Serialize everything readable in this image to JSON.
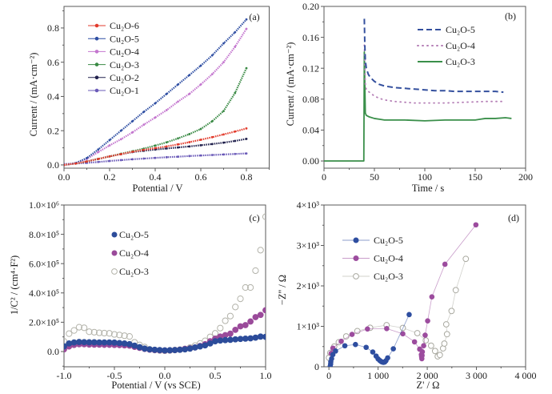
{
  "figure": {
    "panel_count": 4
  },
  "chart_data": [
    {
      "panel_label": "(a)",
      "type": "line",
      "title": "",
      "xlabel": "Potential / V",
      "ylabel": "Current / (mA·cm⁻²)",
      "xlim": [
        0,
        0.9
      ],
      "ylim": [
        -0.019,
        0.926
      ],
      "grid": false,
      "legend_position": "top-left",
      "x_minor_step": 0.1,
      "y_minor_step": 0.1,
      "xticks": [
        {
          "value": 0.0,
          "label": "0.0"
        },
        {
          "value": 0.2,
          "label": "0.2"
        },
        {
          "value": 0.4,
          "label": "0.4"
        },
        {
          "value": 0.6,
          "label": "0.6"
        },
        {
          "value": 0.8,
          "label": "0.8"
        }
      ],
      "yticks": [
        {
          "value": 0.0,
          "label": "0.0"
        },
        {
          "value": 0.2,
          "label": "0.2"
        },
        {
          "value": 0.4,
          "label": "0.4"
        },
        {
          "value": 0.6,
          "label": "0.6"
        },
        {
          "value": 0.8,
          "label": "0.8"
        }
      ],
      "x": [
        0,
        0.05,
        0.1,
        0.15,
        0.2,
        0.25,
        0.3,
        0.35,
        0.4,
        0.45,
        0.5,
        0.55,
        0.6,
        0.65,
        0.7,
        0.75,
        0.8
      ],
      "series": [
        {
          "name": "Cu₂O-6",
          "color": "#e23b2c",
          "marker": "square",
          "values": [
            0.0,
            0.008,
            0.02,
            0.035,
            0.05,
            0.063,
            0.077,
            0.088,
            0.098,
            0.108,
            0.12,
            0.133,
            0.147,
            0.162,
            0.178,
            0.195,
            0.213
          ]
        },
        {
          "name": "Cu₂O-5",
          "color": "#2f4fa3",
          "marker": "circle",
          "values": [
            0.0,
            0.01,
            0.04,
            0.09,
            0.145,
            0.2,
            0.255,
            0.31,
            0.36,
            0.415,
            0.47,
            0.525,
            0.58,
            0.64,
            0.71,
            0.775,
            0.85
          ]
        },
        {
          "name": "Cu₂O-4",
          "color": "#c477cf",
          "marker": "triangle-up",
          "values": [
            0.0,
            0.01,
            0.035,
            0.075,
            0.114,
            0.15,
            0.19,
            0.235,
            0.277,
            0.32,
            0.37,
            0.415,
            0.47,
            0.53,
            0.6,
            0.69,
            0.795
          ]
        },
        {
          "name": "Cu₂O-3",
          "color": "#3a8a45",
          "marker": "triangle-down",
          "values": [
            0.0,
            0.008,
            0.02,
            0.035,
            0.05,
            0.065,
            0.08,
            0.095,
            0.113,
            0.132,
            0.155,
            0.18,
            0.21,
            0.255,
            0.315,
            0.42,
            0.565
          ]
        },
        {
          "name": "Cu₂O-2",
          "color": "#22224e",
          "marker": "diamond",
          "values": [
            0.0,
            0.008,
            0.02,
            0.035,
            0.05,
            0.063,
            0.075,
            0.083,
            0.09,
            0.096,
            0.102,
            0.108,
            0.115,
            0.122,
            0.13,
            0.14,
            0.152
          ]
        },
        {
          "name": "Cu₂O-1",
          "color": "#6a5ab8",
          "marker": "triangle-left",
          "values": [
            0.005,
            0.008,
            0.012,
            0.017,
            0.023,
            0.028,
            0.033,
            0.037,
            0.041,
            0.045,
            0.048,
            0.052,
            0.055,
            0.058,
            0.061,
            0.064,
            0.067
          ]
        }
      ]
    },
    {
      "panel_label": "(b)",
      "type": "line",
      "title": "",
      "xlabel": "Time / s",
      "ylabel": "Current / (mA·cm⁻²)",
      "xlim": [
        0,
        200
      ],
      "ylim": [
        -0.0093,
        0.2
      ],
      "grid": false,
      "legend_position": "top-right",
      "x_minor_step": 25,
      "y_minor_step": 0.02,
      "xticks": [
        {
          "value": 0,
          "label": "0"
        },
        {
          "value": 50,
          "label": "50"
        },
        {
          "value": 100,
          "label": "100"
        },
        {
          "value": 150,
          "label": "150"
        },
        {
          "value": 200,
          "label": "200"
        }
      ],
      "yticks": [
        {
          "value": 0.0,
          "label": "0.00"
        },
        {
          "value": 0.04,
          "label": "0.04"
        },
        {
          "value": 0.08,
          "label": "0.08"
        },
        {
          "value": 0.12,
          "label": "0.12"
        },
        {
          "value": 0.16,
          "label": "0.16"
        },
        {
          "value": 0.2,
          "label": "0.20"
        }
      ],
      "series": [
        {
          "name": "Cu₂O-5",
          "color": "#34509e",
          "line_style": "dashed",
          "x": [
            40,
            40.5,
            41,
            42,
            44,
            46,
            50,
            55,
            60,
            70,
            80,
            90,
            100,
            110,
            120,
            130,
            140,
            150,
            160,
            170,
            178
          ],
          "y": [
            0.184,
            0.15,
            0.13,
            0.12,
            0.112,
            0.108,
            0.103,
            0.099,
            0.097,
            0.095,
            0.094,
            0.093,
            0.092,
            0.091,
            0.091,
            0.09,
            0.09,
            0.09,
            0.09,
            0.09,
            0.089
          ]
        },
        {
          "name": "Cu₂O-4",
          "color": "#b57fb6",
          "line_style": "dotted",
          "x": [
            40,
            41,
            42,
            44,
            46,
            50,
            55,
            60,
            70,
            80,
            90,
            100,
            120,
            140,
            160,
            180
          ],
          "y": [
            0.15,
            0.1,
            0.092,
            0.09,
            0.088,
            0.084,
            0.081,
            0.079,
            0.077,
            0.076,
            0.075,
            0.075,
            0.075,
            0.076,
            0.077,
            0.077
          ]
        },
        {
          "name": "Cu₂O-3",
          "color": "#3a8f4a",
          "line_style": "solid",
          "x": [
            0,
            39.5,
            40,
            40.5,
            41,
            42,
            45,
            50,
            55,
            60,
            80,
            100,
            120,
            140,
            150,
            155,
            160,
            170,
            180,
            186
          ],
          "y": [
            0,
            0,
            0.141,
            0.1,
            0.062,
            0.059,
            0.057,
            0.055,
            0.054,
            0.053,
            0.053,
            0.052,
            0.053,
            0.053,
            0.053,
            0.054,
            0.055,
            0.055,
            0.056,
            0.055
          ]
        }
      ]
    },
    {
      "panel_label": "(c)",
      "type": "scatter",
      "title": "",
      "xlabel": "Potential / V (vs SCE)",
      "ylabel": "1/C² / (cm⁴·F²)",
      "xlim": [
        -1.0,
        1.0
      ],
      "ylim": [
        -104000,
        1000000
      ],
      "grid": false,
      "legend_position": "top-left",
      "x_minor_step": 0.25,
      "y_minor_step": 100000,
      "xticks": [
        {
          "value": -1.0,
          "label": "-1.0"
        },
        {
          "value": -0.5,
          "label": "-0.5"
        },
        {
          "value": 0.0,
          "label": "0.0"
        },
        {
          "value": 0.5,
          "label": "0.5"
        },
        {
          "value": 1.0,
          "label": "1.0"
        }
      ],
      "yticks": [
        {
          "value": 0,
          "label": "0.0"
        },
        {
          "value": 200000,
          "label": "2.0×10⁵"
        },
        {
          "value": 400000,
          "label": "4.0×10⁵"
        },
        {
          "value": 600000,
          "label": "6.0×10⁵"
        },
        {
          "value": 800000,
          "label": "8.0×10⁵"
        },
        {
          "value": 1000000,
          "label": "1.0×10⁶"
        }
      ],
      "x": [
        -1.0,
        -0.95,
        -0.9,
        -0.85,
        -0.8,
        -0.75,
        -0.7,
        -0.65,
        -0.6,
        -0.55,
        -0.5,
        -0.45,
        -0.4,
        -0.35,
        -0.3,
        -0.25,
        -0.2,
        -0.15,
        -0.1,
        -0.05,
        0.0,
        0.05,
        0.1,
        0.15,
        0.2,
        0.25,
        0.3,
        0.35,
        0.4,
        0.45,
        0.5,
        0.55,
        0.6,
        0.65,
        0.7,
        0.75,
        0.8,
        0.85,
        0.9,
        0.95,
        1.0
      ],
      "series": [
        {
          "name": "Cu₂O-5",
          "color": "#2c4c9a",
          "marker": "filled-circle",
          "values": [
            35000,
            55000,
            62000,
            65000,
            64000,
            63000,
            63000,
            62000,
            62000,
            62000,
            61000,
            58000,
            55000,
            50000,
            40000,
            30000,
            20000,
            15000,
            12000,
            10000,
            8000,
            9000,
            10000,
            12000,
            15000,
            20000,
            28000,
            35000,
            42000,
            55000,
            70000,
            75000,
            78000,
            80000,
            83000,
            86000,
            88000,
            90000,
            95000,
            102000,
            100000
          ]
        },
        {
          "name": "Cu₂O-4",
          "color": "#9a4a9a",
          "marker": "filled-circle",
          "values": [
            15000,
            35000,
            45000,
            50000,
            50000,
            48000,
            47000,
            47000,
            46000,
            46000,
            45000,
            44000,
            42000,
            40000,
            32000,
            25000,
            18000,
            13000,
            10000,
            8000,
            7000,
            8000,
            10000,
            13000,
            18000,
            22000,
            28000,
            38000,
            50000,
            70000,
            88000,
            102000,
            112000,
            122000,
            148000,
            172000,
            180000,
            205000,
            235000,
            250000,
            282000
          ]
        },
        {
          "name": "Cu₂O-3",
          "color": "#b3b3aa",
          "marker": "open-circle",
          "values": [
            70000,
            122000,
            144000,
            166000,
            162000,
            135000,
            132000,
            128000,
            126000,
            124000,
            117000,
            113000,
            108000,
            103000,
            63000,
            45000,
            31000,
            15000,
            10000,
            7000,
            5000,
            7000,
            10000,
            13000,
            18000,
            27000,
            40000,
            55000,
            73000,
            100000,
            124000,
            160000,
            210000,
            242000,
            304000,
            360000,
            437000,
            437000,
            552000,
            692000,
            920000
          ]
        }
      ]
    },
    {
      "panel_label": "(d)",
      "type": "line",
      "title": "",
      "xlabel": "Z' / Ω",
      "ylabel": "−Z'' / Ω",
      "xlim": [
        -100,
        4000
      ],
      "ylim": [
        0,
        4000
      ],
      "grid": false,
      "legend_position": "top-left",
      "x_minor_step": 500,
      "y_minor_step": 500,
      "xticks": [
        {
          "value": 0,
          "label": "0"
        },
        {
          "value": 1000,
          "label": "1 000"
        },
        {
          "value": 2000,
          "label": "2 000"
        },
        {
          "value": 3000,
          "label": "3 000"
        },
        {
          "value": 4000,
          "label": "4 000"
        }
      ],
      "yticks": [
        {
          "value": 0,
          "label": "0"
        },
        {
          "value": 1000,
          "label": "1×10³"
        },
        {
          "value": 2000,
          "label": "2×10³"
        },
        {
          "value": 3000,
          "label": "3×10³"
        },
        {
          "value": 4000,
          "label": "4×10³"
        }
      ],
      "series": [
        {
          "name": "Cu₂O-5",
          "color": "#2e4ea0",
          "marker": "filled-circle",
          "points": [
            [
              27,
              13
            ],
            [
              35,
              70
            ],
            [
              38,
              125
            ],
            [
              55,
              200
            ],
            [
              80,
              300
            ],
            [
              135,
              389
            ],
            [
              324,
              520
            ],
            [
              540,
              550
            ],
            [
              757,
              480
            ],
            [
              892,
              365
            ],
            [
              960,
              265
            ],
            [
              1000,
              195
            ],
            [
              1035,
              155
            ],
            [
              1065,
              128
            ],
            [
              1090,
              115
            ],
            [
              1110,
              110
            ],
            [
              1135,
              118
            ],
            [
              1160,
              150
            ],
            [
              1195,
              220
            ],
            [
              1310,
              445
            ],
            [
              1632,
              1290
            ]
          ]
        },
        {
          "name": "Cu₂O-4",
          "color": "#9c4c9e",
          "marker": "filled-circle",
          "points": [
            [
              45,
              330
            ],
            [
              81,
              460
            ],
            [
              250,
              630
            ],
            [
              470,
              800
            ],
            [
              784,
              935
            ],
            [
              1175,
              945
            ],
            [
              1503,
              815
            ],
            [
              1741,
              616
            ],
            [
              1846,
              436
            ],
            [
              1880,
              300
            ],
            [
              1885,
              250
            ],
            [
              1890,
              200
            ],
            [
              1895,
              280
            ],
            [
              1900,
              370
            ],
            [
              1927,
              521
            ],
            [
              1957,
              781
            ],
            [
              2008,
              1135
            ],
            [
              2094,
              1729
            ],
            [
              2360,
              2535
            ],
            [
              2989,
              3510
            ]
          ]
        },
        {
          "name": "Cu₂O-3",
          "color": "#a9a9a0",
          "marker": "open-circle",
          "points": [
            [
              0,
              224
            ],
            [
              27,
              343
            ],
            [
              108,
              502
            ],
            [
              200,
              607
            ],
            [
              351,
              752
            ],
            [
              578,
              884
            ],
            [
              838,
              964
            ],
            [
              1173,
              1030
            ],
            [
              1503,
              960
            ],
            [
              1798,
              832
            ],
            [
              1970,
              653
            ],
            [
              2078,
              521
            ],
            [
              2159,
              390
            ],
            [
              2213,
              257
            ],
            [
              2256,
              291
            ],
            [
              2321,
              455
            ],
            [
              2348,
              574
            ],
            [
              2402,
              806
            ],
            [
              2386,
              1050
            ],
            [
              2494,
              1380
            ],
            [
              2580,
              1895
            ],
            [
              2784,
              2669
            ]
          ]
        }
      ]
    }
  ]
}
